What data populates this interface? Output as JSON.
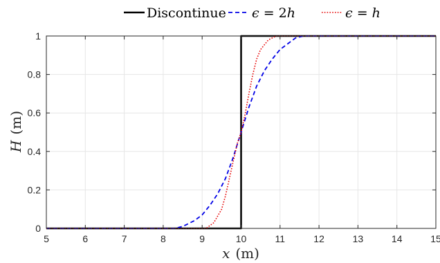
{
  "chart_data": {
    "type": "line",
    "title": "",
    "xlabel": "x",
    "xunit": "(m)",
    "ylabel": "H",
    "yunit": "(m)",
    "xlim": [
      5,
      15
    ],
    "ylim": [
      0,
      1
    ],
    "xticks": [
      "5",
      "6",
      "7",
      "8",
      "9",
      "10",
      "11",
      "12",
      "13",
      "14",
      "15"
    ],
    "yticks": [
      "0",
      "0.2",
      "0.4",
      "0.6",
      "0.8",
      "1"
    ],
    "grid": true,
    "legend_position": "top",
    "legend": [
      {
        "text": "Discontinue",
        "color": "#000000",
        "style": "solid"
      },
      {
        "prefix": "ϵ",
        "text": " = 2",
        "suffix": "h",
        "color": "#0000e6",
        "style": "dashed"
      },
      {
        "prefix": "ϵ",
        "text": " = ",
        "suffix": "h",
        "color": "#e60000",
        "style": "dotted"
      }
    ],
    "series": [
      {
        "name": "Discontinue",
        "color": "#000000",
        "style": "solid",
        "x": [
          5,
          10,
          10,
          15
        ],
        "y": [
          0,
          0,
          1,
          1
        ]
      },
      {
        "name": "ϵ = 2h",
        "color": "#0000e6",
        "style": "dashed",
        "x": [
          5,
          8.3,
          8.5,
          8.8,
          9.0,
          9.2,
          9.4,
          9.6,
          9.8,
          10.0,
          10.2,
          10.4,
          10.6,
          10.8,
          11.0,
          11.2,
          11.4,
          11.6,
          11.8,
          12.0,
          15
        ],
        "y": [
          0,
          0,
          0.01,
          0.04,
          0.07,
          0.12,
          0.18,
          0.26,
          0.37,
          0.5,
          0.63,
          0.74,
          0.82,
          0.88,
          0.93,
          0.96,
          0.99,
          1.0,
          1.0,
          1.0,
          1.0
        ]
      },
      {
        "name": "ϵ = h",
        "color": "#e60000",
        "style": "dotted",
        "x": [
          5,
          9.1,
          9.3,
          9.5,
          9.6,
          9.7,
          9.8,
          9.9,
          10.0,
          10.1,
          10.2,
          10.3,
          10.4,
          10.5,
          10.7,
          10.9,
          15
        ],
        "y": [
          0,
          0,
          0.03,
          0.1,
          0.17,
          0.26,
          0.35,
          0.44,
          0.5,
          0.59,
          0.7,
          0.8,
          0.88,
          0.93,
          0.98,
          1.0,
          1.0
        ]
      }
    ]
  }
}
